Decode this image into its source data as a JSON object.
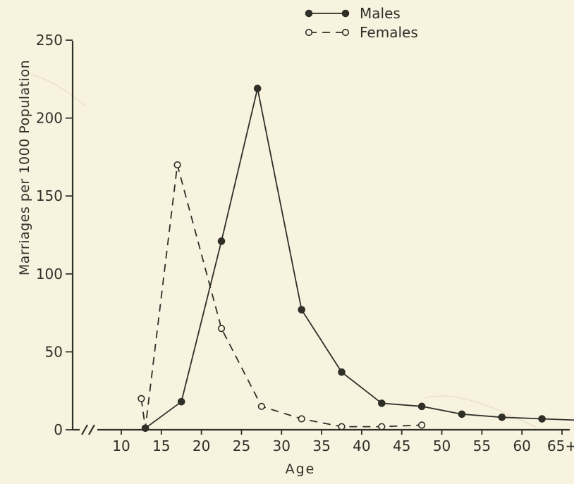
{
  "chart_data": {
    "type": "line",
    "xlabel": "Age",
    "ylabel": "Marriages per 1000 Population",
    "x_tick_labels": [
      "10",
      "15",
      "20",
      "25",
      "30",
      "35",
      "40",
      "45",
      "50",
      "55",
      "60",
      "65+"
    ],
    "y_tick_labels": [
      "0",
      "50",
      "100",
      "150",
      "200",
      "250"
    ],
    "ylim": [
      0,
      250
    ],
    "grid": false,
    "legend_position": "top-right",
    "series": [
      {
        "name": "Males",
        "style": "solid",
        "marker": "filled-circle",
        "color": "#2f2f28",
        "points": [
          {
            "x": 13,
            "y": 1
          },
          {
            "x": 17.5,
            "y": 18
          },
          {
            "x": 22.5,
            "y": 121
          },
          {
            "x": 27,
            "y": 219
          },
          {
            "x": 32.5,
            "y": 77
          },
          {
            "x": 37.5,
            "y": 37
          },
          {
            "x": 42.5,
            "y": 17
          },
          {
            "x": 47.5,
            "y": 15
          },
          {
            "x": 52.5,
            "y": 10
          },
          {
            "x": 57.5,
            "y": 8
          },
          {
            "x": 62.5,
            "y": 7
          },
          {
            "x": 67.5,
            "y": 6
          }
        ]
      },
      {
        "name": "Females",
        "style": "dashed",
        "marker": "open-circle",
        "color": "#2f2f28",
        "points": [
          {
            "x": 12.5,
            "y": 20
          },
          {
            "x": 13,
            "y": 1
          },
          {
            "x": 17,
            "y": 170
          },
          {
            "x": 22.5,
            "y": 65
          },
          {
            "x": 27.5,
            "y": 15
          },
          {
            "x": 32.5,
            "y": 7
          },
          {
            "x": 37.5,
            "y": 2
          },
          {
            "x": 42.5,
            "y": 2
          },
          {
            "x": 47.5,
            "y": 3
          }
        ]
      }
    ]
  },
  "colors": {
    "background": "#f7f3df",
    "ink": "#2f2f28"
  }
}
